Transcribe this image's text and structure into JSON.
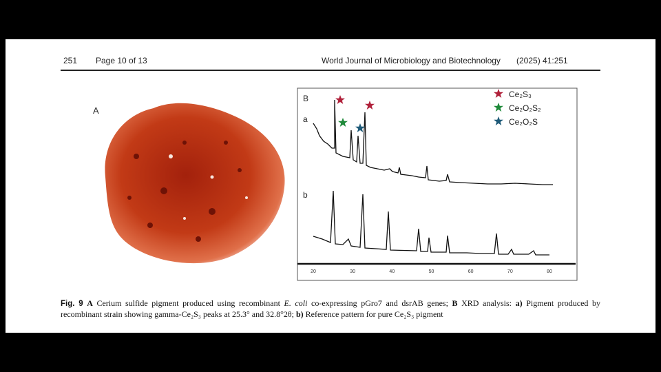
{
  "header": {
    "page_number": "251",
    "page_of": "Page 10 of 13",
    "journal": "World Journal of Microbiology and Biotechnology",
    "citation": "(2025) 41:251"
  },
  "figure": {
    "panel_a": {
      "label": "A"
    },
    "panel_b": {
      "label": "B",
      "trace_a_label": "a",
      "trace_b_label": "b",
      "legend": [
        "Ce₂S₃",
        "Ce₂O₂S₂",
        "Ce₂O₂S"
      ],
      "xticks": [
        "20",
        "30",
        "40",
        "50",
        "60",
        "70",
        "80"
      ]
    },
    "caption": [
      "Fig. 9",
      "A",
      "Cerium sulfide pigment produced using recombinant",
      "E. coli",
      "co-expressing pGro7 and dsrAB genes;",
      "B",
      "XRD analysis:",
      "a)",
      "Pigment produced by recombinant strain showing gamma-Ce₂S₃ peaks at 25.3° and 32.8°2θ;",
      "b)",
      "Reference pattern for pure Ce₂S₃ pigment"
    ]
  }
}
